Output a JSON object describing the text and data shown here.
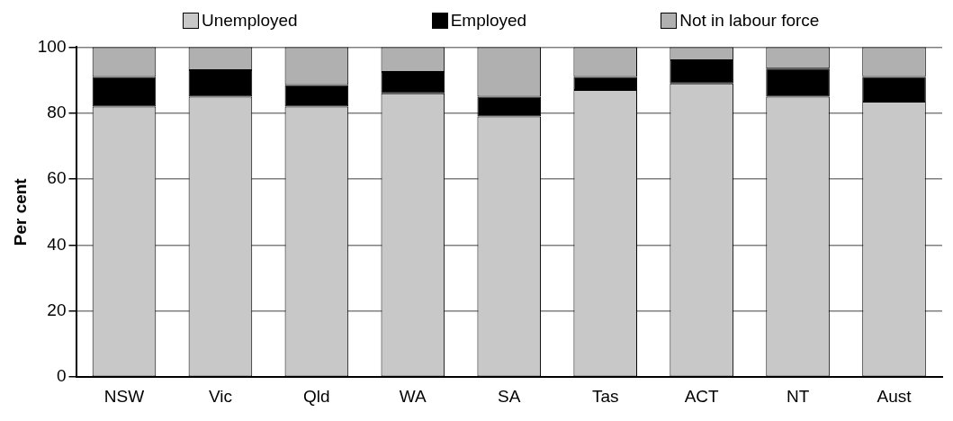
{
  "chart_data": {
    "type": "bar",
    "stacked": true,
    "ylabel": "Per cent",
    "categories": [
      "NSW",
      "Vic",
      "Qld",
      "WA",
      "SA",
      "Tas",
      "ACT",
      "NT",
      "Aust"
    ],
    "series": [
      {
        "name": "Unemployed",
        "color": "#c8c8c8",
        "values": [
          82,
          85,
          82,
          86,
          79,
          87,
          89,
          85,
          83.5
        ]
      },
      {
        "name": "Employed",
        "color": "#000000",
        "values": [
          9,
          8,
          6.5,
          6.5,
          6,
          4,
          7,
          8.5,
          7.5
        ]
      },
      {
        "name": "Not in labour force",
        "color": "#b0b0b0",
        "values": [
          9,
          7,
          11.5,
          7.5,
          15,
          9,
          4,
          6.5,
          9
        ]
      }
    ],
    "ylim": [
      0,
      100
    ],
    "yticks": [
      0,
      20,
      40,
      60,
      80,
      100
    ],
    "grid": "y",
    "legend": "top"
  }
}
